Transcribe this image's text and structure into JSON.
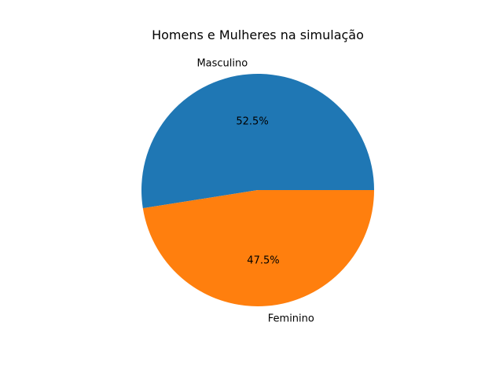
{
  "chart_data": {
    "type": "pie",
    "title": "Homens e Mulheres na simulação",
    "slices": [
      {
        "label": "Masculino",
        "value": 52.5,
        "pct_label": "52.5%",
        "color": "#1f77b4"
      },
      {
        "label": "Feminino",
        "value": 47.5,
        "pct_label": "47.5%",
        "color": "#ff7f0e"
      }
    ],
    "start_angle_deg": 0,
    "direction": "counterclockwise",
    "legend": "none"
  }
}
